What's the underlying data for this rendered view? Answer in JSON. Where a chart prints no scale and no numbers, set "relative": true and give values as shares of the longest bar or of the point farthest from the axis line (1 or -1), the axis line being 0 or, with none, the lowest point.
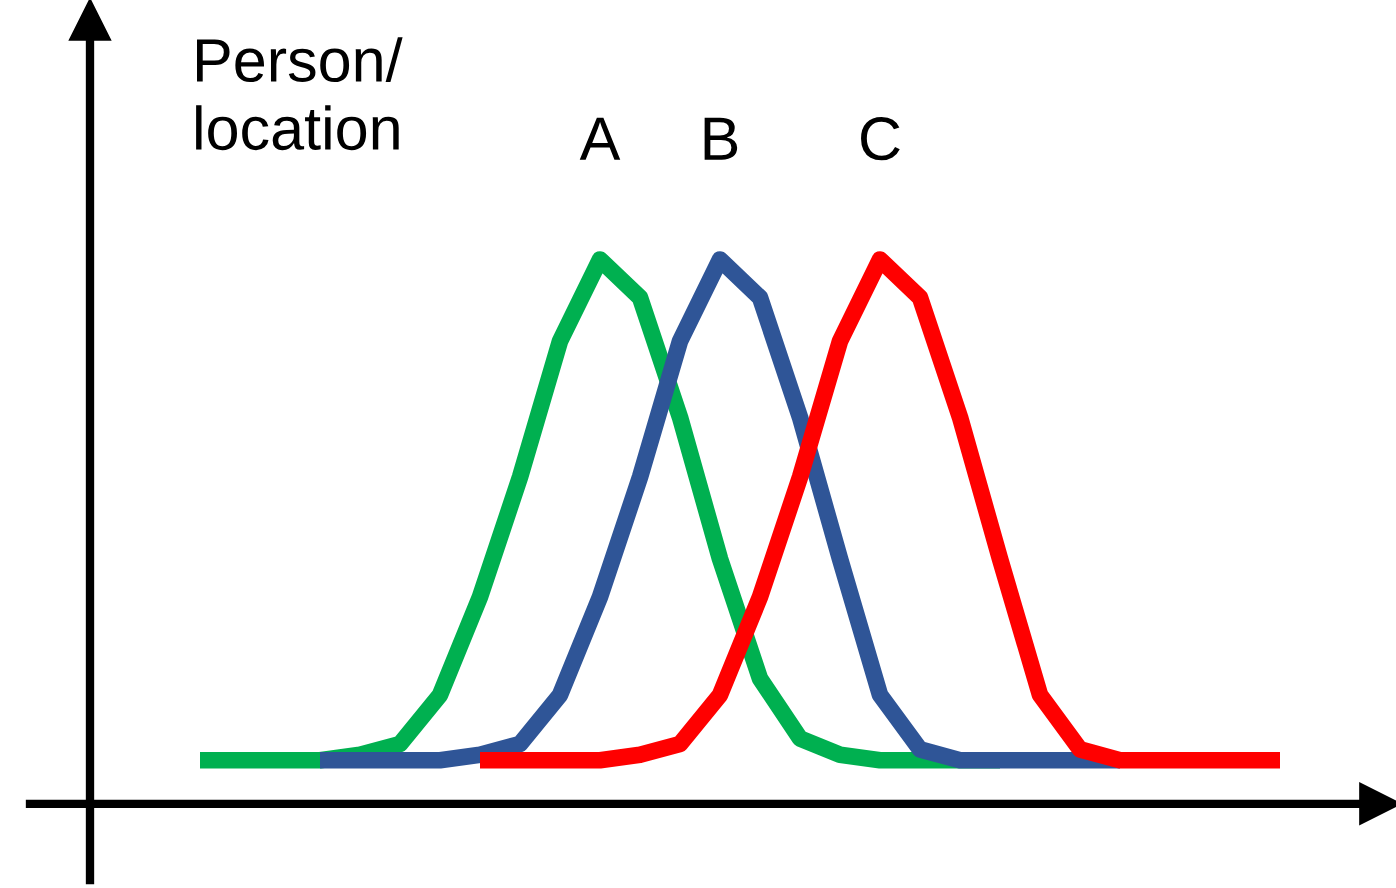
{
  "chart_data": {
    "type": "line",
    "relative": true,
    "ylabel": "Person/\nlocation",
    "categories": [
      null,
      null,
      null,
      null,
      null,
      null,
      null,
      null,
      null,
      null,
      null,
      null,
      null,
      null,
      null,
      null,
      null,
      null,
      null,
      null,
      null,
      null,
      null,
      null,
      null,
      null,
      null,
      null
    ],
    "series": [
      {
        "name": "A",
        "color": "#00b050",
        "values": [
          0.08,
          0.08,
          0.08,
          0.08,
          0.09,
          0.11,
          0.2,
          0.38,
          0.6,
          0.85,
          1.0,
          0.93,
          0.71,
          0.45,
          0.23,
          0.12,
          0.09,
          0.08,
          0.08,
          0.08,
          0.08,
          null,
          null,
          null,
          null,
          null,
          null,
          null
        ]
      },
      {
        "name": "B",
        "color": "#2f5597",
        "values": [
          null,
          null,
          null,
          0.08,
          0.08,
          0.08,
          0.08,
          0.09,
          0.11,
          0.2,
          0.38,
          0.6,
          0.85,
          1.0,
          0.93,
          0.71,
          0.45,
          0.2,
          0.1,
          0.08,
          0.08,
          0.08,
          0.08,
          0.08,
          null,
          null,
          null,
          null
        ]
      },
      {
        "name": "C",
        "color": "#ff0000",
        "values": [
          null,
          null,
          null,
          null,
          null,
          null,
          null,
          0.08,
          0.08,
          0.08,
          0.08,
          0.09,
          0.11,
          0.2,
          0.38,
          0.6,
          0.85,
          1.0,
          0.93,
          0.71,
          0.45,
          0.2,
          0.1,
          0.08,
          0.08,
          0.08,
          0.08,
          0.08
        ]
      }
    ],
    "legend": false,
    "grid": false,
    "marker": "none",
    "line_style": "solid"
  }
}
